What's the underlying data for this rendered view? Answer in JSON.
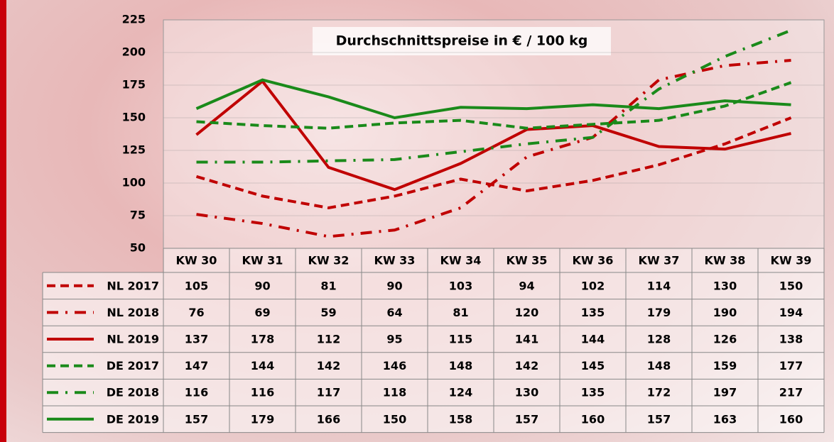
{
  "chart_data": {
    "type": "line",
    "title": "Durchschnittspreise in € / 100 kg",
    "categories": [
      "KW 30",
      "KW 31",
      "KW 32",
      "KW 33",
      "KW 34",
      "KW 35",
      "KW 36",
      "KW 37",
      "KW 38",
      "KW 39"
    ],
    "ylim": [
      50,
      225
    ],
    "yticks": [
      50,
      75,
      100,
      125,
      150,
      175,
      200,
      225
    ],
    "grid": true,
    "series": [
      {
        "name": "NL 2017",
        "color": "#c00000",
        "dash": "dashed",
        "values": [
          105,
          90,
          81,
          90,
          103,
          94,
          102,
          114,
          130,
          150
        ]
      },
      {
        "name": "NL 2018",
        "color": "#c00000",
        "dash": "dashdot",
        "values": [
          76,
          69,
          59,
          64,
          81,
          120,
          135,
          179,
          190,
          194
        ]
      },
      {
        "name": "NL 2019",
        "color": "#c00000",
        "dash": "solid",
        "values": [
          137,
          178,
          112,
          95,
          115,
          141,
          144,
          128,
          126,
          138
        ]
      },
      {
        "name": "DE 2017",
        "color": "#1a8a1a",
        "dash": "dashed",
        "values": [
          147,
          144,
          142,
          146,
          148,
          142,
          145,
          148,
          159,
          177
        ]
      },
      {
        "name": "DE 2018",
        "color": "#1a8a1a",
        "dash": "dashdot",
        "values": [
          116,
          116,
          117,
          118,
          124,
          130,
          135,
          172,
          197,
          217
        ]
      },
      {
        "name": "DE 2019",
        "color": "#1a8a1a",
        "dash": "solid",
        "values": [
          157,
          179,
          166,
          150,
          158,
          157,
          160,
          157,
          163,
          160
        ]
      }
    ]
  }
}
